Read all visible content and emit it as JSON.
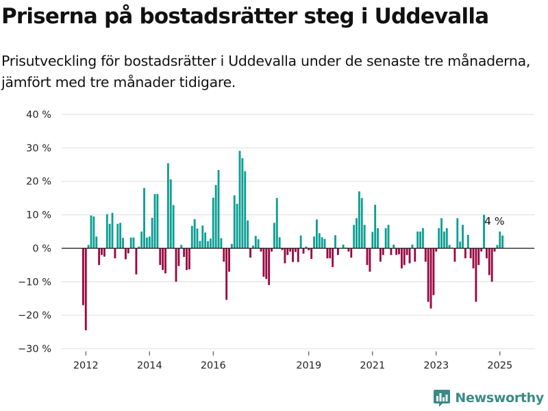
{
  "header": {
    "title": "Priserna på bostadsrätter steg i Uddevalla",
    "subtitle": "Prisutveckling för bostadsrätter i Uddevalla under de senaste tre månaderna, jämfört med tre månader tidigare."
  },
  "brand": {
    "name": "Newsworthy",
    "icon": "bar-chart-logo-icon"
  },
  "colors": {
    "positive": "#0d9f94",
    "negative": "#9a0742",
    "grid": "#dcdcdc",
    "zero_line": "#222222",
    "brand": "#3a8a86"
  },
  "chart_data": {
    "type": "bar",
    "title": "Priserna på bostadsrätter steg i Uddevalla",
    "subtitle": "Prisutveckling för bostadsrätter i Uddevalla under de senaste tre månaderna, jämfört med tre månader tidigare.",
    "unit": "%",
    "xlabel": "",
    "ylabel": "",
    "ylim": [
      -30,
      40
    ],
    "yticks": [
      -30,
      -20,
      -10,
      0,
      10,
      20,
      30,
      40
    ],
    "ytick_labels": [
      "−30 %",
      "−20 %",
      "−10 %",
      "0 %",
      "10 %",
      "20 %",
      "30 %",
      "40 %"
    ],
    "xticks": [
      "2012",
      "2014",
      "2016",
      "2019",
      "2021",
      "2023",
      "2025"
    ],
    "xtick_values": [
      "2012-01",
      "2014-01",
      "2016-01",
      "2019-01",
      "2021-01",
      "2023-01",
      "2025-01"
    ],
    "grid": true,
    "start_month": "2011-12",
    "values": [
      -17.0,
      -24.5,
      1.0,
      9.8,
      9.5,
      3.5,
      -5.0,
      -2.0,
      -2.5,
      10.2,
      7.3,
      10.6,
      -3.0,
      7.3,
      7.6,
      3.1,
      -3.3,
      -1.5,
      3.2,
      3.2,
      -7.8,
      0.5,
      5.0,
      18.0,
      3.2,
      3.5,
      9.1,
      16.2,
      16.2,
      -5.0,
      -6.5,
      -7.5,
      25.4,
      20.6,
      12.9,
      -10.0,
      -5.3,
      1.0,
      -2.6,
      -6.5,
      -6.3,
      6.7,
      8.7,
      5.9,
      2.2,
      6.8,
      4.7,
      2.1,
      2.9,
      15.1,
      18.9,
      23.4,
      3.0,
      -4.0,
      -15.4,
      -7.0,
      1.3,
      15.8,
      13.3,
      29.1,
      26.9,
      23.0,
      8.3,
      -2.8,
      0.8,
      3.7,
      2.7,
      -1.0,
      -8.5,
      -9.2,
      -11.0,
      -1.0,
      7.6,
      15.0,
      3.3,
      -0.5,
      -4.5,
      -2.0,
      -1.0,
      -4.1,
      -1.1,
      -4.1,
      3.8,
      -1.6,
      0.5,
      -0.6,
      -3.2,
      3.5,
      8.6,
      4.5,
      3.3,
      2.8,
      -3.0,
      -3.0,
      -5.6,
      3.9,
      -2.0,
      0.1,
      1.1,
      0.2,
      -1.0,
      -2.8,
      7.0,
      9.0,
      17.0,
      15.0,
      7.0,
      -5.0,
      -7.0,
      4.9,
      13.0,
      6.0,
      -4.0,
      -2.0,
      6.0,
      7.0,
      -2.0,
      1.1,
      -2.0,
      -1.8,
      -6.0,
      -5.0,
      -2.0,
      -4.5,
      1.1,
      -4.0,
      5.0,
      5.0,
      6.0,
      -4.0,
      -16.0,
      -18.0,
      -14.0,
      -1.0,
      6.0,
      9.0,
      5.0,
      6.0,
      1.0,
      0.2,
      -4.0,
      9.0,
      2.0,
      7.0,
      -3.0,
      4.0,
      -3.0,
      -6.0,
      -16.0,
      -5.0,
      -1.0,
      10.0,
      -3.0,
      -8.0,
      -10.0,
      -1.0,
      1.0,
      5.0,
      3.8
    ],
    "annotations": [
      {
        "label": "4 %",
        "target": "last"
      }
    ]
  }
}
